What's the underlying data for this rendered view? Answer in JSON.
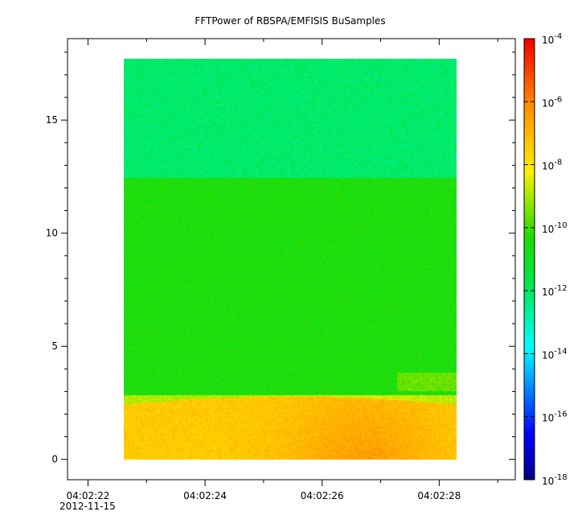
{
  "chart_data": {
    "type": "heatmap",
    "title": "FFTPower of RBSPA/EMFISIS  BuSamples",
    "xlabel": "",
    "ylabel": "",
    "date_label": "2012-11-15",
    "x_range": [
      "04:02:21.65",
      "04:02:29.30"
    ],
    "x_data_range": [
      "04:02:22.75",
      "04:02:28.70"
    ],
    "x_ticks": [
      "04:02:22",
      "04:02:24",
      "04:02:26",
      "04:02:28"
    ],
    "x_minor_ticks": [
      "04:02:23",
      "04:02:25",
      "04:02:27",
      "04:02:29"
    ],
    "ylim": [
      -0.9,
      18.6
    ],
    "y_data_range": [
      0,
      17.5
    ],
    "y_ticks": [
      0,
      5,
      10,
      15
    ],
    "z_scale": "log",
    "z_range": [
      1e-18,
      0.0001
    ],
    "colorbar_ticks": [
      {
        "value": 0.0001,
        "label": "10",
        "exp": "-4"
      },
      {
        "value": 1e-06,
        "label": "10",
        "exp": "-6"
      },
      {
        "value": 1e-08,
        "label": "10",
        "exp": "-8"
      },
      {
        "value": 1e-10,
        "label": "10",
        "exp": "-10"
      },
      {
        "value": 1e-12,
        "label": "10",
        "exp": "-12"
      },
      {
        "value": 1e-14,
        "label": "10",
        "exp": "-14"
      },
      {
        "value": 1e-16,
        "label": "10",
        "exp": "-16"
      },
      {
        "value": 1e-18,
        "label": "10",
        "exp": "-18"
      }
    ],
    "grid": false,
    "colormap": "rainbow",
    "bands": [
      {
        "y_from": 0,
        "y_to": 2.8,
        "log_power": -7.4
      },
      {
        "y_from": 2.8,
        "y_to": 12.3,
        "log_power": -10.5
      },
      {
        "y_from": 12.3,
        "y_to": 17.5,
        "log_power": -12.1
      }
    ]
  }
}
